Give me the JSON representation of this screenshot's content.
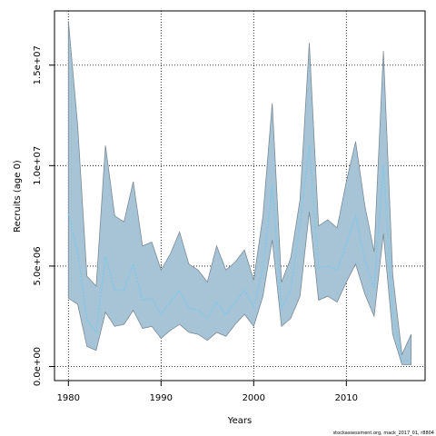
{
  "chart_data": {
    "type": "area",
    "xlabel": "Years",
    "ylabel": "Recruits (age 0)",
    "xlim": [
      1978.5,
      2018.5
    ],
    "ylim": [
      -700000,
      17700000
    ],
    "x_ticks": [
      1980,
      1990,
      2000,
      2010
    ],
    "x_tick_labels": [
      "1980",
      "1990",
      "2000",
      "2010"
    ],
    "y_ticks": [
      0,
      5000000,
      10000000,
      15000000
    ],
    "y_tick_labels": [
      "0.0e+00",
      "5.0e+06",
      "1.0e+07",
      "1.5e+07"
    ],
    "grid": true,
    "credit": "stockassessment.org, mack_2017_01, r8804",
    "colors": {
      "band": "#a6c4d6",
      "band_edge": "#7a8a96",
      "line": "#7ec8ea"
    },
    "series": [
      {
        "x": [
          1980,
          1981,
          1982,
          1983,
          1984,
          1985,
          1986,
          1987,
          1988,
          1989,
          1990,
          1991,
          1992,
          1993,
          1994,
          1995,
          1996,
          1997,
          1998,
          1999,
          2000,
          2001,
          2002,
          2003,
          2004,
          2005,
          2006,
          2007,
          2008,
          2009,
          2010,
          2011,
          2012,
          2013,
          2014,
          2015,
          2016,
          2017
        ],
        "estimate": [
          7600000,
          5700000,
          2300000,
          1700000,
          5500000,
          3800000,
          3800000,
          5100000,
          3300000,
          3400000,
          2600000,
          3200000,
          3800000,
          2900000,
          2800000,
          2400000,
          3200000,
          2600000,
          3200000,
          3800000,
          3000000,
          4900000,
          9000000,
          2900000,
          3800000,
          7100000,
          11000000,
          4900000,
          5000000,
          4800000,
          6100000,
          7500000,
          5300000,
          3900000,
          10000000,
          2700000,
          300000,
          300000
        ],
        "lower": [
          3400000,
          3100000,
          1000000,
          800000,
          2700000,
          2000000,
          2100000,
          2800000,
          1900000,
          2000000,
          1400000,
          1800000,
          2100000,
          1700000,
          1600000,
          1300000,
          1700000,
          1500000,
          2100000,
          2600000,
          2000000,
          3500000,
          6300000,
          2000000,
          2400000,
          3500000,
          7700000,
          3300000,
          3500000,
          3200000,
          4200000,
          5100000,
          3600000,
          2500000,
          6600000,
          1600000,
          100000,
          100000
        ],
        "upper": [
          17200000,
          12000000,
          4500000,
          4000000,
          11000000,
          7500000,
          7200000,
          9200000,
          6000000,
          6200000,
          4800000,
          5600000,
          6700000,
          5100000,
          4800000,
          4200000,
          6000000,
          4800000,
          5200000,
          5800000,
          4300000,
          7500000,
          13100000,
          4200000,
          5400000,
          8300000,
          16100000,
          7000000,
          7300000,
          6900000,
          9200000,
          11200000,
          8000000,
          5700000,
          15700000,
          4600000,
          600000,
          1600000
        ]
      }
    ]
  }
}
